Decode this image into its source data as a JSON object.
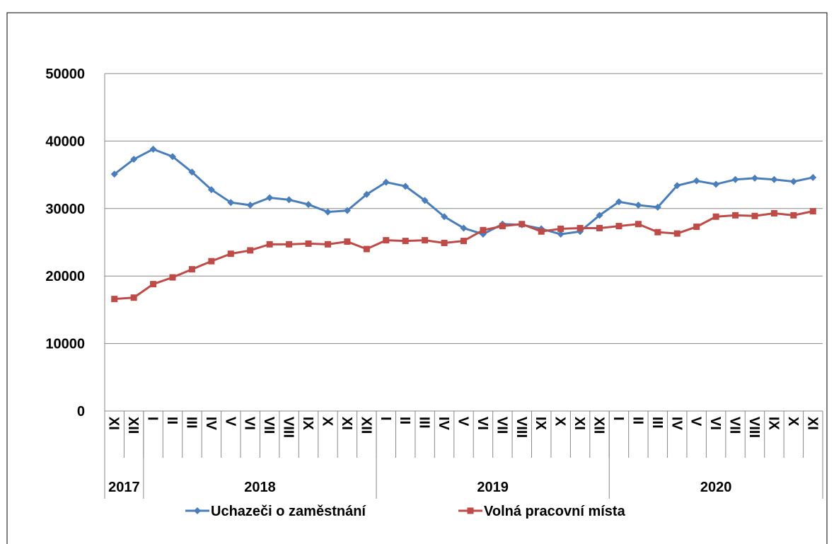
{
  "chart_data": {
    "type": "line",
    "categories": [
      "XI",
      "XII",
      "I",
      "II",
      "III",
      "IV",
      "V",
      "VI",
      "VII",
      "VIII",
      "IX",
      "X",
      "XI",
      "XII",
      "I",
      "II",
      "III",
      "IV",
      "V",
      "VI",
      "VII",
      "VIII",
      "IX",
      "X",
      "XI",
      "XII",
      "I",
      "II",
      "III",
      "IV",
      "V",
      "VI",
      "VII",
      "VIII",
      "IX",
      "X",
      "XI"
    ],
    "year_groups": [
      {
        "label": "2017",
        "span": 2
      },
      {
        "label": "2018",
        "span": 12
      },
      {
        "label": "2019",
        "span": 12
      },
      {
        "label": "2020",
        "span": 11
      }
    ],
    "series": [
      {
        "name": "Uchazeči o zaměstnání",
        "color": "#4a7ebb",
        "marker": "diamond",
        "values": [
          35100,
          37300,
          38800,
          37700,
          35400,
          32800,
          30900,
          30500,
          31600,
          31300,
          30600,
          29500,
          29700,
          32100,
          33900,
          33300,
          31200,
          28800,
          27100,
          26200,
          27700,
          27600,
          27000,
          26200,
          26600,
          29000,
          31000,
          30500,
          30200,
          33400,
          34100,
          33600,
          34300,
          34500,
          34300,
          34000,
          34600
        ]
      },
      {
        "name": "Volná pracovní místa",
        "color": "#be4b48",
        "marker": "square",
        "values": [
          16600,
          16800,
          18800,
          19800,
          21000,
          22200,
          23300,
          23800,
          24700,
          24700,
          24800,
          24700,
          25100,
          24000,
          25300,
          25200,
          25300,
          24900,
          25200,
          26800,
          27400,
          27700,
          26600,
          27000,
          27100,
          27100,
          27400,
          27700,
          26500,
          26300,
          27300,
          28800,
          29000,
          28900,
          29300,
          29000,
          29600
        ]
      }
    ],
    "ylim": [
      0,
      50000
    ],
    "yticks": [
      0,
      10000,
      20000,
      30000,
      40000,
      50000
    ],
    "grid": true,
    "legend": "bottom"
  }
}
